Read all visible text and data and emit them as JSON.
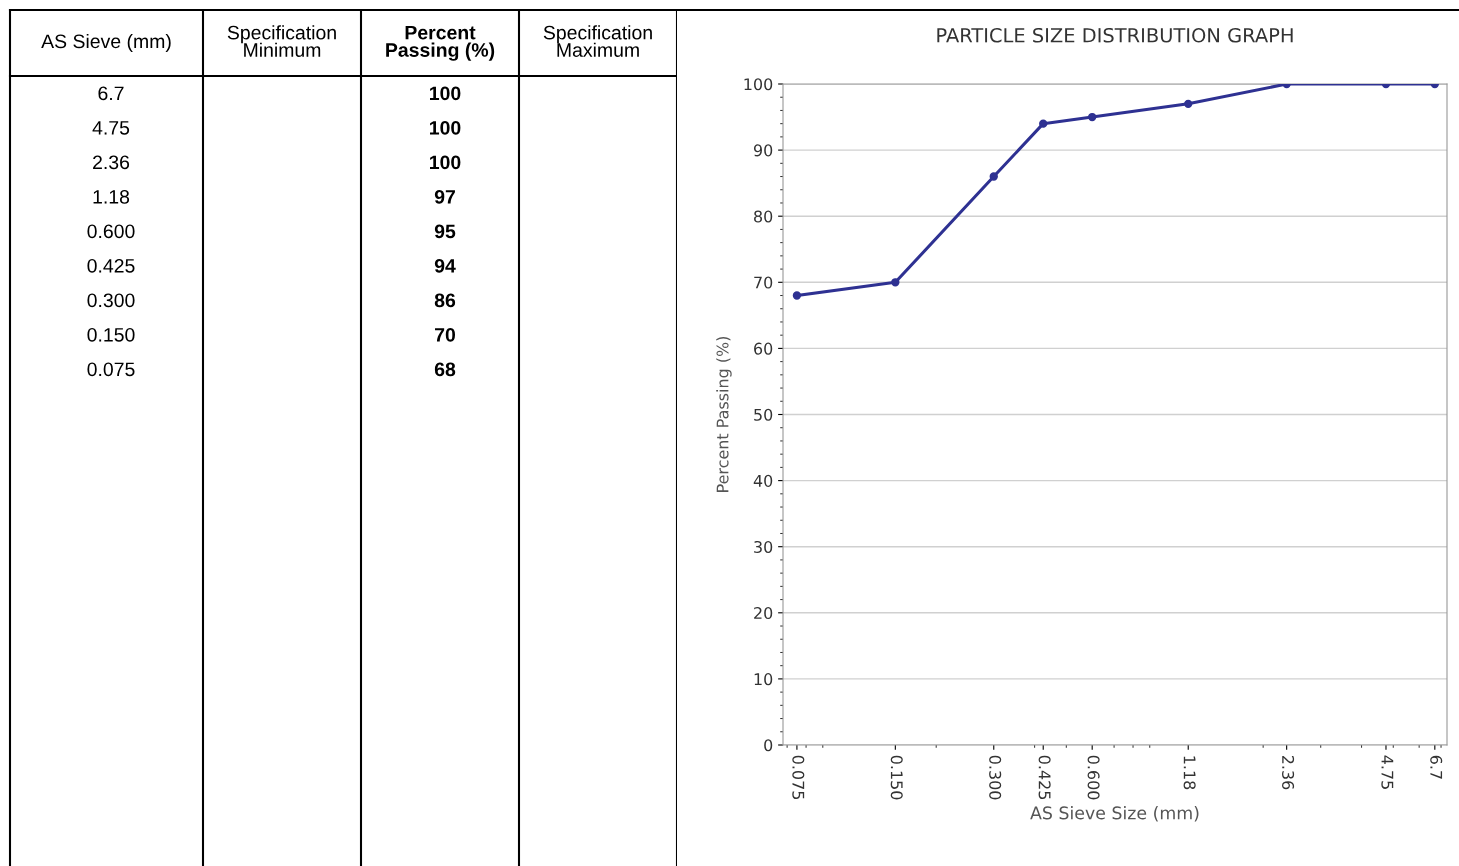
{
  "chart_data": [
    {
      "type": "other",
      "annotations": [
        "AS Sieve (mm)",
        "Specification\nMinimum",
        "Percent\nPassing (%)",
        "Specification\nMaximum"
      ],
      "categories": [
        "6.7",
        "4.75",
        "2.36",
        "1.18",
        "0.600",
        "0.425",
        "0.300",
        "0.150",
        "0.075"
      ],
      "values": [
        100,
        100,
        100,
        97,
        95,
        94,
        86,
        70,
        68
      ],
      "data_labels": true
    },
    {
      "type": "line",
      "title": "PARTICLE SIZE DISTRIBUTION GRAPH",
      "xlabel": "AS Sieve Size (mm)",
      "ylabel": "Percent Passing (%)",
      "x": [
        0.075,
        0.15,
        0.3,
        0.425,
        0.6,
        1.18,
        2.36,
        4.75,
        6.7
      ],
      "series": [
        {
          "color": "#2e3192",
          "values": [
            68,
            70,
            86,
            94,
            95,
            97,
            100,
            100,
            100
          ]
        }
      ],
      "log": "x",
      "xlim": [
        0.068,
        7.3
      ],
      "ylim": [
        0,
        100
      ],
      "xticks": [
        {
          "value": 0.075,
          "label": "0.075"
        },
        {
          "value": 0.15,
          "label": "0.150"
        },
        {
          "value": 0.3,
          "label": "0.300"
        },
        {
          "value": 0.425,
          "label": "0.425"
        },
        {
          "value": 0.6,
          "label": "0.600"
        },
        1.18,
        2.36,
        4.75,
        6.7
      ],
      "yticks": [
        0,
        10,
        20,
        30,
        40,
        50,
        60,
        70,
        80,
        90,
        100
      ],
      "grid": "y",
      "marker": "circle",
      "line_style": "solid"
    }
  ]
}
